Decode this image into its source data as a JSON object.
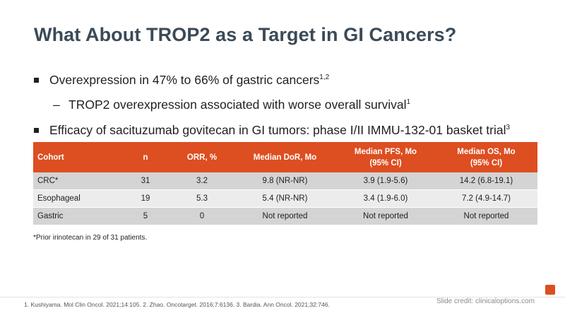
{
  "slide": {
    "title": "What About TROP2 as a Target in GI Cancers?",
    "bullets": [
      {
        "text": "Overexpression in 47% to 66% of gastric cancers",
        "sup": "1,2"
      },
      {
        "text": "TROP2 overexpression associated with worse overall survival",
        "sup": "1"
      },
      {
        "text": "Efficacy of sacituzumab govitecan in GI tumors: phase I/II IMMU-132-01 basket trial",
        "sup": "3"
      }
    ],
    "sub_dash": "–"
  },
  "table": {
    "headers": [
      "Cohort",
      "n",
      "ORR, %",
      "Median DoR, Mo",
      "Median PFS, Mo",
      "(95% CI)",
      "Median OS, Mo",
      "(95% CI)"
    ],
    "rows": [
      [
        "CRC*",
        "31",
        "3.2",
        "9.8 (NR-NR)",
        "3.9 (1.9-5.6)",
        "14.2 (6.8-19.1)"
      ],
      [
        "Esophageal",
        "19",
        "5.3",
        "5.4 (NR-NR)",
        "3.4 (1.9-6.0)",
        "7.2 (4.9-14.7)"
      ],
      [
        "Gastric",
        "5",
        "0",
        "Not reported",
        "Not reported",
        "Not reported"
      ]
    ]
  },
  "footnote": "*Prior irinotecan in 29 of 31 patients.",
  "references": "1. Kushiyama. Mol Clin Oncol. 2021;14:105.  2. Zhao. Oncotarget. 2016;7:6136.  3. Bardia. Ann Oncol. 2021;32:746.",
  "watermark": "Slide credit: clinicaloptions.com",
  "colors": {
    "accent": "#dd4e21",
    "title": "#3b4a57",
    "row_dark": "#d4d4d4",
    "row_light": "#ececec"
  }
}
